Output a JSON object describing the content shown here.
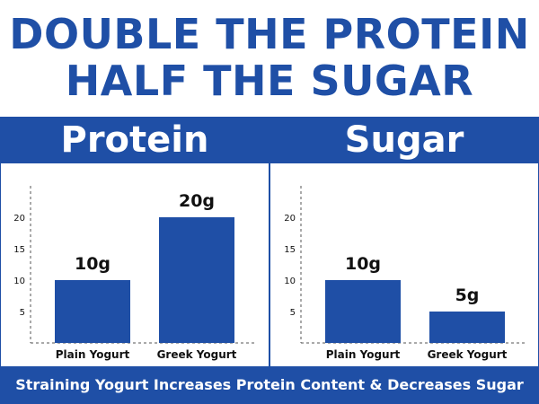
{
  "headline": {
    "line1": "DOUBLE THE PROTEIN",
    "line2": "HALF THE SUGAR"
  },
  "footer": "Straining Yogurt Increases Protein Content & Decreases Sugar",
  "colors": {
    "brand": "#1f4fa6",
    "bar": "#1f4fa6",
    "text": "#111111"
  },
  "chart_data": [
    {
      "type": "bar",
      "title": "Protein",
      "categories": [
        "Plain Yogurt",
        "Greek Yogurt"
      ],
      "values": [
        10,
        20
      ],
      "data_labels": [
        "10g",
        "20g"
      ],
      "yticks": [
        5,
        10,
        15,
        20
      ],
      "ylim": [
        0,
        25
      ],
      "xlabel": "",
      "ylabel": "",
      "grid": false
    },
    {
      "type": "bar",
      "title": "Sugar",
      "categories": [
        "Plain Yogurt",
        "Greek Yogurt"
      ],
      "values": [
        10,
        5
      ],
      "data_labels": [
        "10g",
        "5g"
      ],
      "yticks": [
        5,
        10,
        15,
        20
      ],
      "ylim": [
        0,
        25
      ],
      "xlabel": "",
      "ylabel": "",
      "grid": false
    }
  ]
}
